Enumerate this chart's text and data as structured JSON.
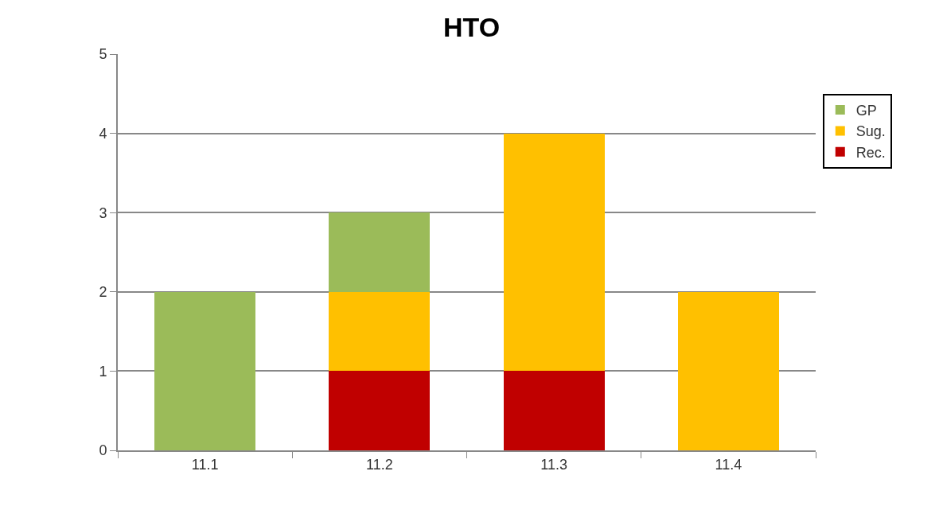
{
  "chart_data": {
    "type": "bar",
    "title": "HTO",
    "stacked": true,
    "categories": [
      "11.1",
      "11.2",
      "11.3",
      "11.4"
    ],
    "series": [
      {
        "name": "Rec.",
        "color": "#c00000",
        "values": [
          0,
          1,
          1,
          0
        ]
      },
      {
        "name": "Sug.",
        "color": "#ffc000",
        "values": [
          0,
          1,
          3,
          2
        ]
      },
      {
        "name": "GP",
        "color": "#9bbb59",
        "values": [
          2,
          1,
          0,
          0
        ]
      }
    ],
    "ylim": [
      0,
      5
    ],
    "yticks": [
      0,
      1,
      2,
      3,
      4,
      5
    ],
    "grid": "y",
    "legend": "top right"
  }
}
